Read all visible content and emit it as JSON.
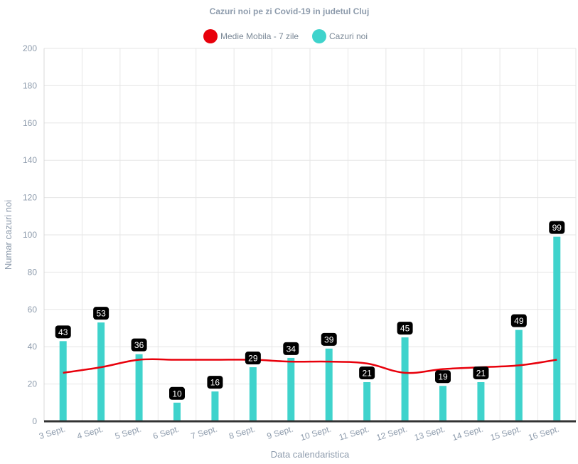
{
  "chart_data": {
    "type": "bar",
    "title": "Cazuri noi pe zi Covid-19 in judetul Cluj",
    "xlabel": "Data calendaristica",
    "ylabel": "Numar cazuri noi",
    "ylim": [
      0,
      200
    ],
    "yticks": [
      0,
      20,
      40,
      60,
      80,
      100,
      120,
      140,
      160,
      180,
      200
    ],
    "grid": true,
    "legend_position": "top-center",
    "categories": [
      "3 Sept.",
      "4 Sept.",
      "5 Sept.",
      "6 Sept.",
      "7 Sept.",
      "8 Sept.",
      "9 Sept.",
      "10 Sept.",
      "11 Sept.",
      "12 Sept.",
      "13 Sept.",
      "14 Sept.",
      "15 Sept.",
      "16 Sept."
    ],
    "series": [
      {
        "name": "Medie Mobila - 7 zile",
        "type": "line",
        "color": "#e8000b",
        "values": [
          26,
          29,
          33,
          33,
          33,
          33,
          32,
          32,
          31,
          26,
          28,
          29,
          30,
          33
        ]
      },
      {
        "name": "Cazuri noi",
        "type": "bar",
        "color": "#3fd3cc",
        "values": [
          43,
          53,
          36,
          10,
          16,
          29,
          34,
          39,
          21,
          45,
          19,
          21,
          49,
          99
        ]
      }
    ]
  }
}
